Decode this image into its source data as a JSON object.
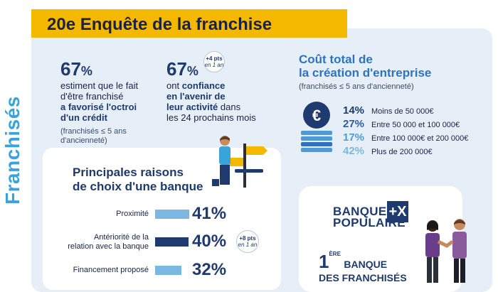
{
  "banner": {
    "title": "20e Enquête de la franchise"
  },
  "side_title": "Franchisés",
  "stat_left": {
    "pct_number": "67",
    "pct_sign": "%",
    "line1": "estiment que le fait",
    "line2": "d'être franchisé",
    "bold1": "a favorisé l'octroi",
    "bold2": "d'un crédit",
    "note1": "(franchisés ≤ 5 ans",
    "note2": "d'ancienneté)"
  },
  "stat_right": {
    "pct_number": "67",
    "pct_sign": "%",
    "badge_top": "+4 pts",
    "badge_bottom": "en 1 an",
    "line1_plain": "ont",
    "line1_bold": "confiance",
    "bold2": "en l'avenir de",
    "bold3": "leur activité",
    "line3_plain": "dans",
    "line4": "les 24 prochains mois"
  },
  "cost": {
    "title1": "Coût total de",
    "title2": "la création d'entreprise",
    "subtitle": "(franchisés ≤ 5 ans d'ancienneté)",
    "rows": [
      {
        "pct": "14%",
        "label": "Moins de 50 000€",
        "color": "#1e3a6e"
      },
      {
        "pct": "27%",
        "label": "Entre 50 000 et 100 000€",
        "color": "#2e5aa8"
      },
      {
        "pct": "17%",
        "label": "Entre 100 000€ et 200 000€",
        "color": "#4d9bd6"
      },
      {
        "pct": "42%",
        "label": "Plus de 200 000€",
        "color": "#7ab8e2"
      }
    ]
  },
  "reasons": {
    "title1": "Principales raisons",
    "title2": "de choix d'une banque",
    "rows": [
      {
        "label": "Proximité",
        "pct": "41%",
        "share": 41,
        "color": "#7ab8e2"
      },
      {
        "label": "Antériorité de la",
        "label2": "relation avec la banque",
        "pct": "40%",
        "share": 40,
        "color": "#1e3a6e"
      },
      {
        "label": "Financement proposé",
        "pct": "32%",
        "share": 32,
        "color": "#7ab8e2"
      }
    ],
    "badge_top": "+8 pts",
    "badge_bottom": "en 1 an"
  },
  "bp_card": {
    "logo1": "BANQUE",
    "logo2": "POPULAIRE",
    "logo_mark": "+X",
    "first_number": "1",
    "first_sup": "ÈRE",
    "first_rest": "BANQUE",
    "line2": "DES FRANCHISÉS"
  },
  "icons": {
    "euro": "euro-coin-icon",
    "person": "thinking-person-illustration",
    "handshake": "handshake-illustration"
  },
  "colors": {
    "banner": "#f5b800",
    "navy": "#1e3a6e",
    "blue": "#3aa3d9",
    "panel": "#e6eff7"
  }
}
